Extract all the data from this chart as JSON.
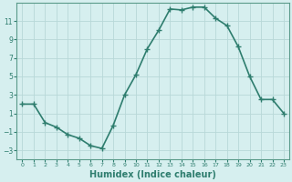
{
  "x": [
    0,
    1,
    2,
    3,
    4,
    5,
    6,
    7,
    8,
    9,
    10,
    11,
    12,
    13,
    14,
    15,
    16,
    17,
    18,
    19,
    20,
    21,
    22,
    23
  ],
  "y": [
    2,
    2,
    0,
    -0.5,
    -1.3,
    -1.7,
    -2.5,
    -2.8,
    -0.3,
    3,
    5.2,
    8,
    10,
    12.3,
    12.2,
    12.5,
    12.5,
    11.3,
    10.5,
    8.2,
    5,
    2.5,
    2.5,
    1
  ],
  "line_color": "#2e7d6e",
  "marker": "+",
  "marker_size": 4,
  "marker_color": "#2e7d6e",
  "xlabel": "Humidex (Indice chaleur)",
  "xlabel_fontsize": 7,
  "bg_color": "#d6efef",
  "grid_color": "#b8d8d8",
  "tick_color": "#2e7d6e",
  "ylim": [
    -4,
    13
  ],
  "xlim": [
    -0.5,
    23.5
  ],
  "yticks": [
    -3,
    -1,
    1,
    3,
    5,
    7,
    9,
    11
  ],
  "xticks": [
    0,
    1,
    2,
    3,
    4,
    5,
    6,
    7,
    8,
    9,
    10,
    11,
    12,
    13,
    14,
    15,
    16,
    17,
    18,
    19,
    20,
    21,
    22,
    23
  ],
  "linewidth": 1.2,
  "spine_color": "#5a9a8a"
}
